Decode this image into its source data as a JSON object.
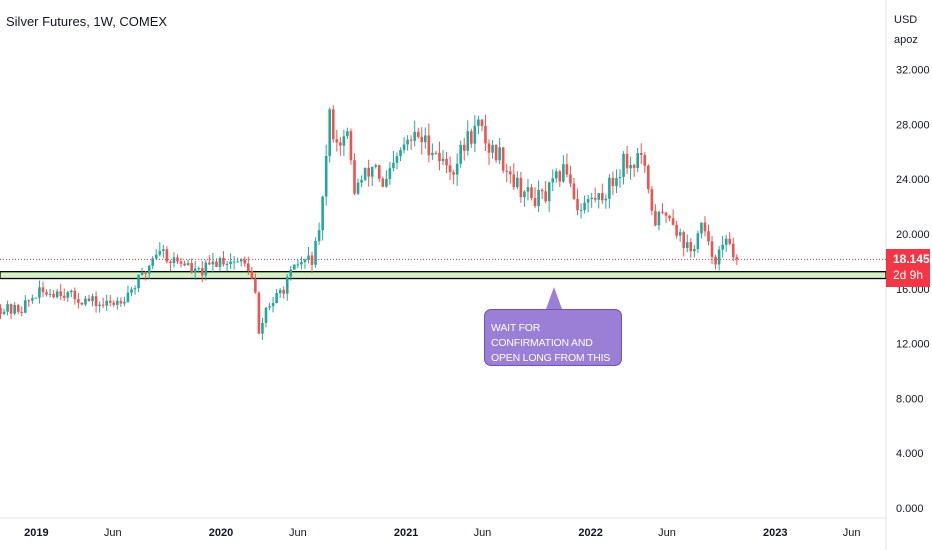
{
  "header": {
    "title": "Silver Futures, 1W, COMEX",
    "currency": "USD",
    "scale_mode": "apoz"
  },
  "last_price": {
    "value": "18.145",
    "countdown": "2d 9h",
    "color": "#f23645"
  },
  "annotation": {
    "line1": "WAIT FOR CONFIRMATION AND",
    "line2": "OPEN LONG FROM THIS ZONE",
    "color": "#9b7fd6"
  },
  "colors": {
    "up": "#26a69a",
    "down": "#ef5350",
    "zone_fill": "#d4f0c5",
    "zone_border": "#000000",
    "price_line": "#f23645"
  },
  "chart_data": {
    "type": "candlestick",
    "title": "Silver Futures, 1W, COMEX",
    "y_unit": "USD",
    "ylim": [
      0,
      33
    ],
    "y_ticks": [
      "32.000",
      "28.000",
      "24.000",
      "20.000",
      "16.000",
      "12.000",
      "8.000",
      "4.000",
      "0.000"
    ],
    "x_ticks": [
      {
        "label": "2019",
        "x": "2019-01-01"
      },
      {
        "label": "Jun",
        "x": "2019-06-01"
      },
      {
        "label": "2020",
        "x": "2020-01-01"
      },
      {
        "label": "Jun",
        "x": "2020-06-01"
      },
      {
        "label": "2021",
        "x": "2021-01-01"
      },
      {
        "label": "Jun",
        "x": "2021-06-01"
      },
      {
        "label": "2022",
        "x": "2022-01-01"
      },
      {
        "label": "Jun",
        "x": "2022-06-01"
      },
      {
        "label": "2023",
        "x": "2023-01-01"
      },
      {
        "label": "Jun",
        "x": "2023-06-01"
      }
    ],
    "xlim": [
      "2018-10-21",
      "2023-08-08"
    ],
    "support_zone": [
      16.75,
      17.25
    ],
    "last_price": 18.145,
    "series": [
      {
        "close_anchors": [
          [
            "2018-10-22",
            14.6
          ],
          [
            "2018-11-12",
            14.4
          ],
          [
            "2018-12-03",
            14.6
          ],
          [
            "2018-12-31",
            15.6
          ],
          [
            "2019-02-18",
            15.9
          ],
          [
            "2019-03-11",
            15.4
          ],
          [
            "2019-04-15",
            15.1
          ],
          [
            "2019-05-13",
            14.8
          ],
          [
            "2019-06-03",
            15.0
          ],
          [
            "2019-06-24",
            15.5
          ],
          [
            "2019-07-15",
            16.3
          ],
          [
            "2019-08-05",
            17.2
          ],
          [
            "2019-08-19",
            18.4
          ],
          [
            "2019-09-02",
            19.0
          ],
          [
            "2019-09-23",
            18.1
          ],
          [
            "2019-10-21",
            17.9
          ],
          [
            "2019-11-11",
            17.1
          ],
          [
            "2019-12-02",
            17.4
          ],
          [
            "2019-12-30",
            18.2
          ],
          [
            "2020-02-03",
            18.0
          ],
          [
            "2020-02-24",
            17.6
          ],
          [
            "2020-03-09",
            15.6
          ],
          [
            "2020-03-16",
            12.5
          ],
          [
            "2020-03-30",
            14.6
          ],
          [
            "2020-04-20",
            15.3
          ],
          [
            "2020-05-11",
            16.5
          ],
          [
            "2020-06-01",
            17.8
          ],
          [
            "2020-06-29",
            18.2
          ],
          [
            "2020-07-13",
            19.7
          ],
          [
            "2020-07-20",
            23.0
          ],
          [
            "2020-07-27",
            25.5
          ],
          [
            "2020-08-03",
            28.5
          ],
          [
            "2020-08-17",
            26.8
          ],
          [
            "2020-09-07",
            27.0
          ],
          [
            "2020-09-21",
            23.3
          ],
          [
            "2020-10-12",
            24.2
          ],
          [
            "2020-11-02",
            25.2
          ],
          [
            "2020-11-16",
            23.2
          ],
          [
            "2020-12-07",
            24.8
          ],
          [
            "2020-12-28",
            26.4
          ],
          [
            "2021-01-25",
            27.2
          ],
          [
            "2021-02-01",
            26.8
          ],
          [
            "2021-02-22",
            26.4
          ],
          [
            "2021-03-15",
            25.2
          ],
          [
            "2021-04-05",
            24.8
          ],
          [
            "2021-05-03",
            27.0
          ],
          [
            "2021-05-24",
            27.9
          ],
          [
            "2021-06-14",
            26.3
          ],
          [
            "2021-07-05",
            25.8
          ],
          [
            "2021-08-09",
            23.6
          ],
          [
            "2021-09-06",
            22.6
          ],
          [
            "2021-10-04",
            22.7
          ],
          [
            "2021-11-01",
            24.3
          ],
          [
            "2021-11-15",
            24.8
          ],
          [
            "2021-12-06",
            22.0
          ],
          [
            "2022-01-03",
            22.5
          ],
          [
            "2022-01-24",
            22.8
          ],
          [
            "2022-02-21",
            24.2
          ],
          [
            "2022-03-07",
            25.5
          ],
          [
            "2022-03-21",
            25.0
          ],
          [
            "2022-04-11",
            25.8
          ],
          [
            "2022-04-25",
            22.8
          ],
          [
            "2022-05-09",
            21.0
          ],
          [
            "2022-06-06",
            21.6
          ],
          [
            "2022-06-27",
            19.8
          ],
          [
            "2022-07-18",
            18.6
          ],
          [
            "2022-08-08",
            20.6
          ],
          [
            "2022-08-22",
            19.0
          ],
          [
            "2022-09-05",
            18.3
          ],
          [
            "2022-09-19",
            18.9
          ],
          [
            "2022-10-03",
            19.5
          ],
          [
            "2022-10-17",
            18.145
          ]
        ]
      }
    ]
  }
}
